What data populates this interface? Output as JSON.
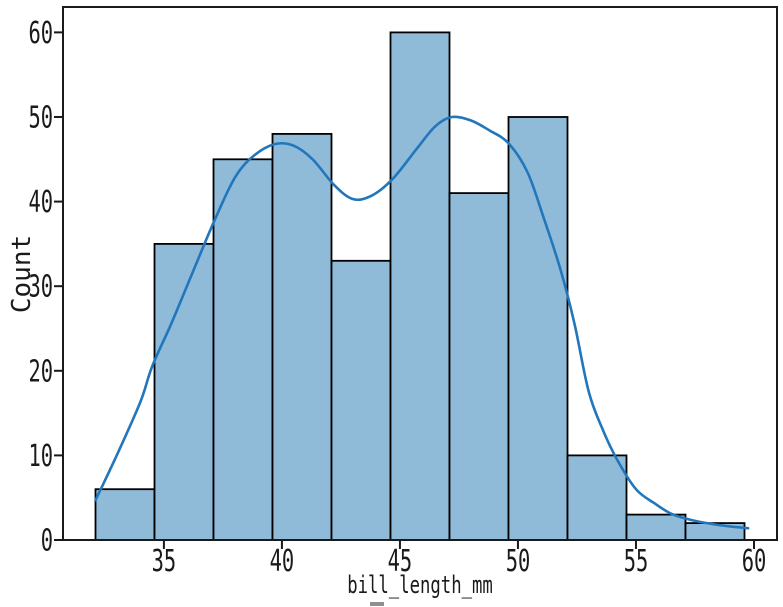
{
  "figure": {
    "background": "#ffffff",
    "axis_color": "#1a1a1a",
    "bar_fill": "#8fbbd9",
    "bar_edge": "#000000",
    "kde_color": "#2176bc",
    "cropped_text_remnant_color": "#8f8f8f"
  },
  "chart_data": {
    "type": "histogram",
    "overlay": "kde",
    "title": "",
    "xlabel": "bill_length_mm",
    "ylabel": "Count",
    "bin_edges": [
      32.1,
      34.6,
      37.1,
      39.6,
      42.1,
      44.6,
      47.1,
      49.6,
      52.1,
      54.6,
      57.1,
      59.6
    ],
    "counts": [
      6,
      35,
      45,
      48,
      33,
      60,
      41,
      50,
      10,
      3,
      2
    ],
    "kde_points": [
      [
        32.1,
        4.7
      ],
      [
        33.0,
        10.0
      ],
      [
        34.0,
        16.3
      ],
      [
        34.5,
        20.5
      ],
      [
        35.3,
        25.5
      ],
      [
        36.2,
        31.5
      ],
      [
        37.1,
        37.5
      ],
      [
        38.0,
        42.8
      ],
      [
        38.8,
        45.4
      ],
      [
        39.7,
        46.8
      ],
      [
        40.5,
        46.6
      ],
      [
        41.3,
        45.0
      ],
      [
        42.2,
        42.0
      ],
      [
        43.0,
        40.3
      ],
      [
        43.8,
        40.7
      ],
      [
        44.7,
        42.7
      ],
      [
        45.7,
        46.2
      ],
      [
        46.5,
        48.9
      ],
      [
        47.2,
        50.0
      ],
      [
        48.0,
        49.6
      ],
      [
        48.8,
        48.4
      ],
      [
        49.6,
        46.9
      ],
      [
        50.4,
        43.5
      ],
      [
        51.1,
        38.0
      ],
      [
        51.8,
        32.0
      ],
      [
        52.4,
        25.5
      ],
      [
        53.0,
        17.5
      ],
      [
        53.6,
        13.0
      ],
      [
        54.2,
        9.5
      ],
      [
        55.0,
        6.0
      ],
      [
        55.8,
        4.3
      ],
      [
        56.5,
        3.1
      ],
      [
        57.3,
        2.4
      ],
      [
        58.2,
        1.9
      ],
      [
        59.0,
        1.6
      ],
      [
        59.75,
        1.4
      ]
    ],
    "x_ticks": [
      35,
      40,
      45,
      50,
      55,
      60
    ],
    "y_ticks": [
      0,
      10,
      20,
      30,
      40,
      50,
      60
    ],
    "xlim": [
      30.725,
      60.975
    ],
    "ylim": [
      0,
      63
    ],
    "grid": false,
    "legend_position": "none"
  }
}
